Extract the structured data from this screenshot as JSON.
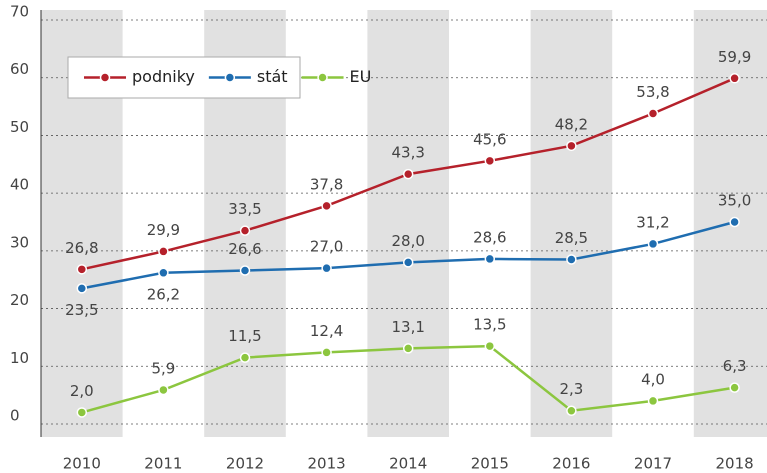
{
  "chart_data": {
    "type": "line",
    "categories": [
      "2010",
      "2011",
      "2012",
      "2013",
      "2014",
      "2015",
      "2016",
      "2017",
      "2018"
    ],
    "series": [
      {
        "name": "podniky",
        "color": "#b5212b",
        "values": [
          26.8,
          29.9,
          33.5,
          37.8,
          43.3,
          45.6,
          48.2,
          53.8,
          59.9
        ],
        "value_labels": [
          "26,8",
          "29,9",
          "33,5",
          "37,8",
          "43,3",
          "45,6",
          "48,2",
          "53,8",
          "59,9"
        ]
      },
      {
        "name": "stát",
        "color": "#1f6db0",
        "values": [
          23.5,
          26.2,
          26.6,
          27.0,
          28.0,
          28.6,
          28.5,
          31.2,
          35.0
        ],
        "value_labels": [
          "23,5",
          "26,2",
          "26,6",
          "27,0",
          "28,0",
          "28,6",
          "28,5",
          "31,2",
          "35,0"
        ]
      },
      {
        "name": "EU",
        "color": "#8cc63f",
        "values": [
          2.0,
          5.9,
          11.5,
          12.4,
          13.1,
          13.5,
          2.3,
          4.0,
          6.3
        ],
        "value_labels": [
          "2,0",
          "5,9",
          "11,5",
          "12,4",
          "13,1",
          "13,5",
          "2,3",
          "4,0",
          "6,3"
        ]
      }
    ],
    "ylim": [
      0,
      70
    ],
    "yticks": [
      0,
      10,
      20,
      30,
      40,
      50,
      60,
      70
    ],
    "grid": true
  }
}
